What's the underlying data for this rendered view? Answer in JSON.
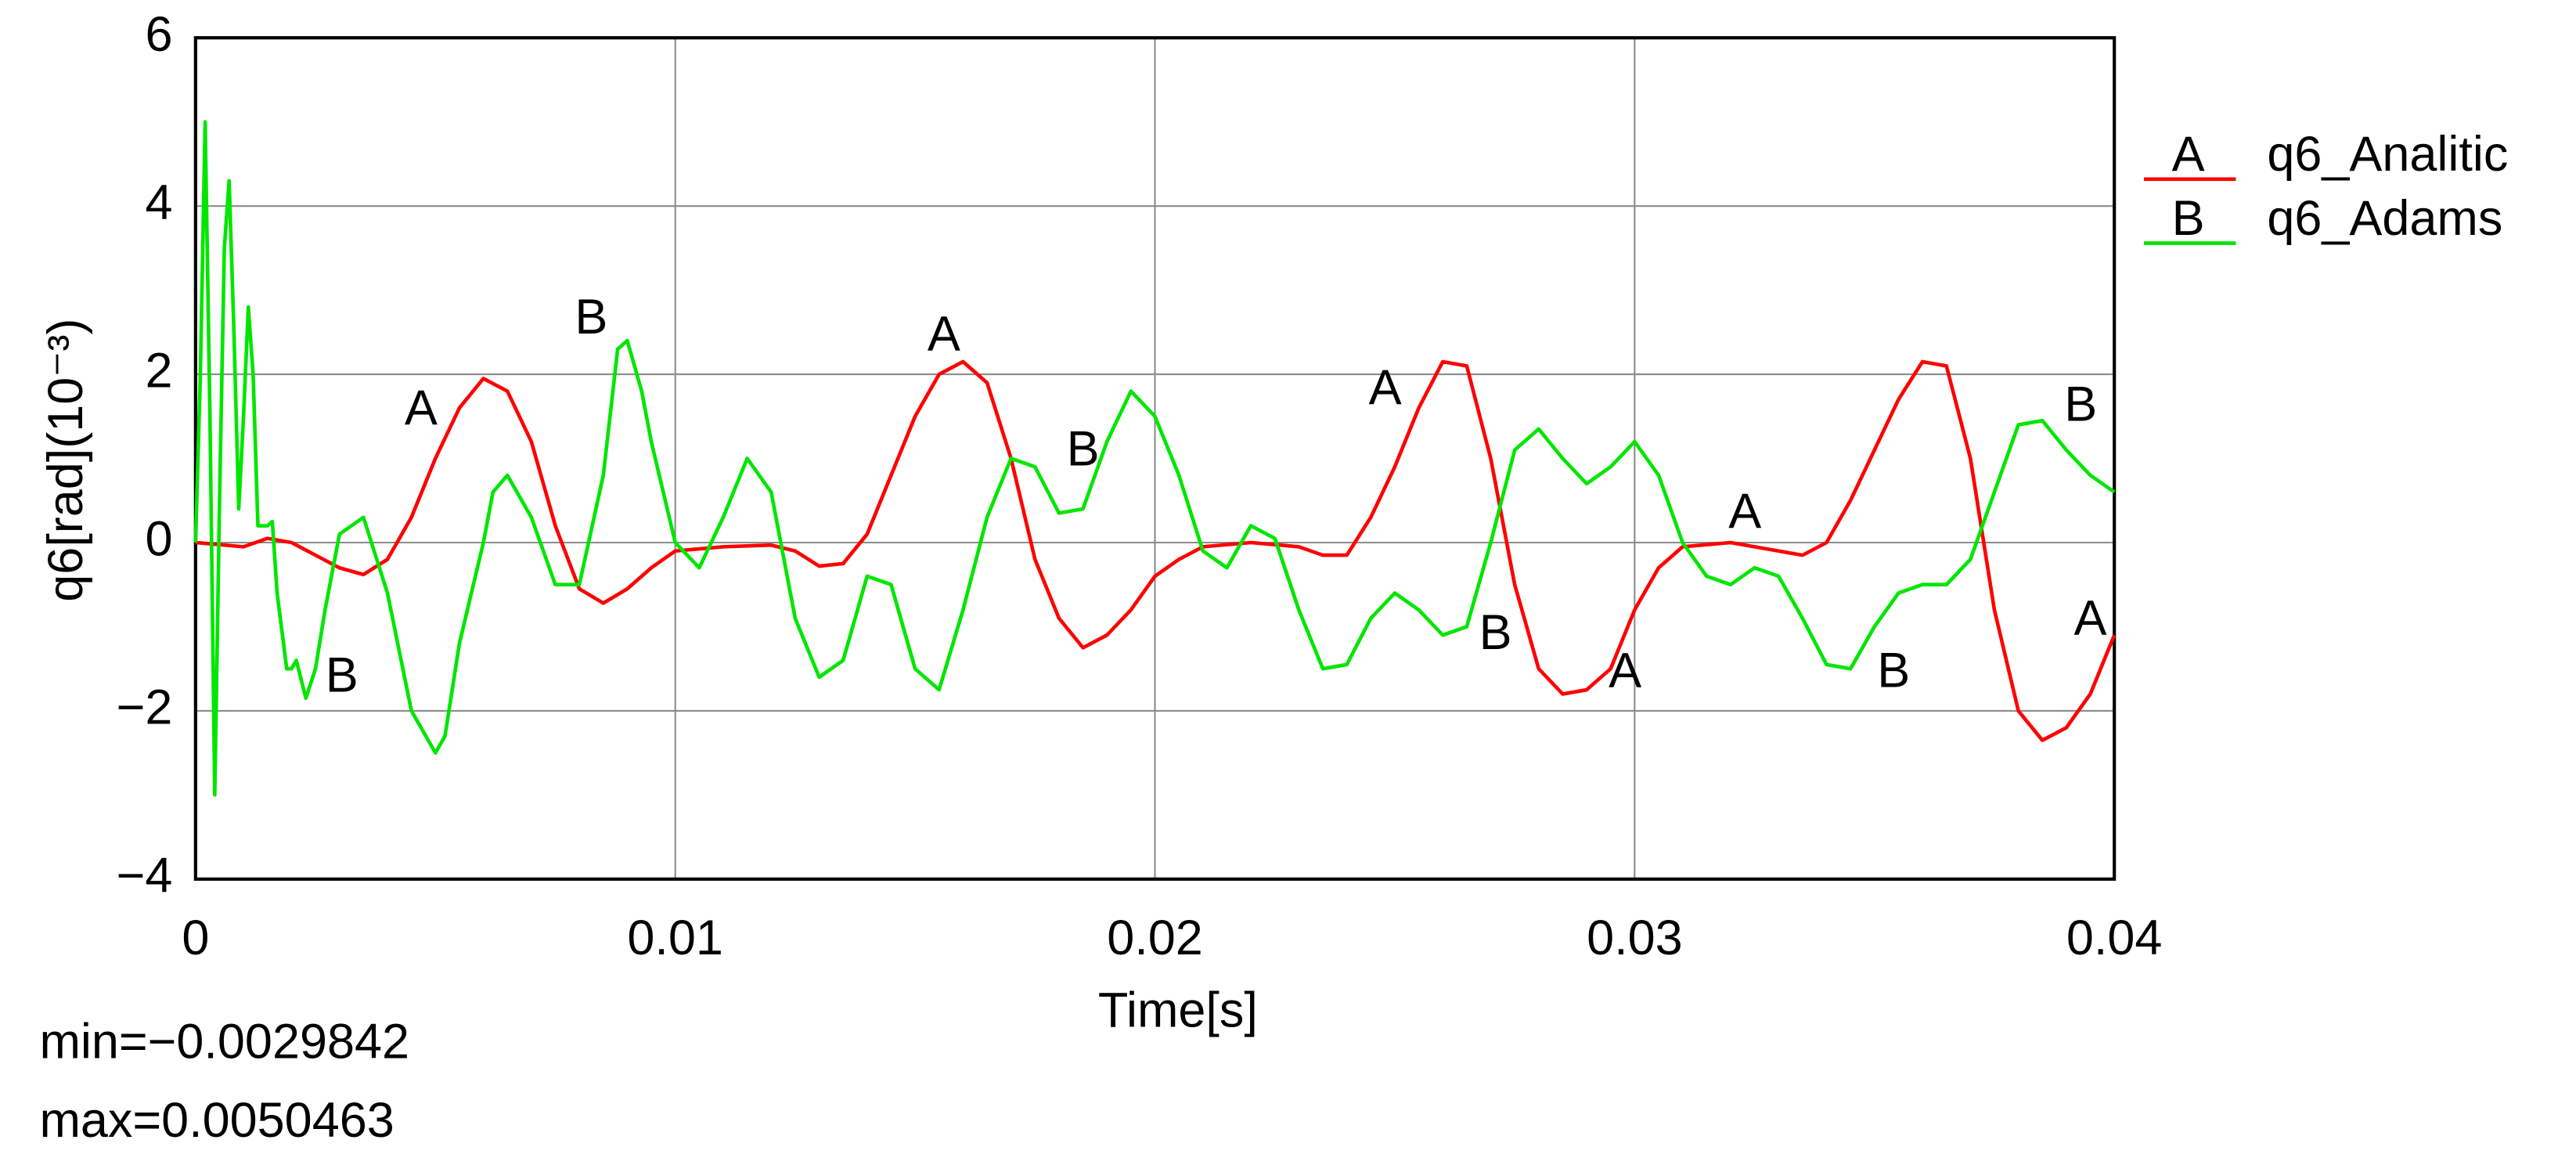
{
  "chart_data": {
    "type": "line",
    "xlabel": "Time[s]",
    "ylabel": "q6[rad](10⁻³)",
    "xlim": [
      0,
      0.04
    ],
    "ylim": [
      -4,
      6
    ],
    "xticks": [
      0,
      0.01,
      0.02,
      0.03,
      0.04
    ],
    "yticks": [
      {
        "value": -4,
        "label": "−4"
      },
      {
        "value": -2,
        "label": "−2"
      },
      0,
      2,
      4,
      6
    ],
    "grid": true,
    "legend": "right",
    "series": [
      {
        "name": "q6_Analitic",
        "label": "A",
        "color": "#ff0000",
        "x": [
          0,
          0.001,
          0.0015,
          0.002,
          0.0025,
          0.003,
          0.0035,
          0.004,
          0.0045,
          0.005,
          0.0055,
          0.006,
          0.0065,
          0.007,
          0.0075,
          0.008,
          0.0085,
          0.009,
          0.0095,
          0.01,
          0.011,
          0.012,
          0.0125,
          0.013,
          0.0135,
          0.014,
          0.0145,
          0.015,
          0.0155,
          0.016,
          0.0165,
          0.017,
          0.0175,
          0.018,
          0.0185,
          0.019,
          0.0195,
          0.02,
          0.0205,
          0.021,
          0.022,
          0.023,
          0.0235,
          0.024,
          0.0245,
          0.025,
          0.0255,
          0.026,
          0.0265,
          0.027,
          0.0275,
          0.028,
          0.0285,
          0.029,
          0.0295,
          0.03,
          0.0305,
          0.031,
          0.032,
          0.033,
          0.0335,
          0.034,
          0.0345,
          0.035,
          0.0355,
          0.036,
          0.0365,
          0.037,
          0.0375,
          0.038,
          0.0385,
          0.039,
          0.0395,
          0.04
        ],
        "values": [
          0,
          -0.05,
          0.05,
          0,
          -0.15,
          -0.3,
          -0.38,
          -0.2,
          0.3,
          1.0,
          1.6,
          1.95,
          1.8,
          1.2,
          0.2,
          -0.55,
          -0.72,
          -0.55,
          -0.3,
          -0.1,
          -0.05,
          -0.03,
          -0.1,
          -0.28,
          -0.25,
          0.1,
          0.8,
          1.5,
          2.0,
          2.15,
          1.9,
          1.0,
          -0.2,
          -0.9,
          -1.25,
          -1.1,
          -0.8,
          -0.4,
          -0.2,
          -0.05,
          0,
          -0.05,
          -0.15,
          -0.15,
          0.3,
          0.9,
          1.6,
          2.15,
          2.1,
          1.0,
          -0.5,
          -1.5,
          -1.8,
          -1.75,
          -1.5,
          -0.8,
          -0.3,
          -0.05,
          0,
          -0.1,
          -0.15,
          0,
          0.5,
          1.1,
          1.7,
          2.15,
          2.1,
          1.0,
          -0.8,
          -2.0,
          -2.35,
          -2.2,
          -1.8,
          -1.1
        ]
      },
      {
        "name": "q6_Adams",
        "label": "B",
        "color": "#00e600",
        "x": [
          0,
          0.0001,
          0.0002,
          0.0003,
          0.0004,
          0.0005,
          0.0006,
          0.0007,
          0.0008,
          0.0009,
          0.001,
          0.0011,
          0.0012,
          0.0013,
          0.0015,
          0.0016,
          0.0017,
          0.0019,
          0.002,
          0.0021,
          0.0023,
          0.0025,
          0.0027,
          0.003,
          0.0035,
          0.004,
          0.0045,
          0.005,
          0.0052,
          0.0055,
          0.006,
          0.0062,
          0.0065,
          0.007,
          0.0075,
          0.008,
          0.0085,
          0.0088,
          0.009,
          0.0093,
          0.0095,
          0.01,
          0.0105,
          0.011,
          0.0115,
          0.012,
          0.0125,
          0.013,
          0.0135,
          0.014,
          0.0145,
          0.015,
          0.0155,
          0.016,
          0.0165,
          0.017,
          0.0175,
          0.018,
          0.0185,
          0.019,
          0.0195,
          0.02,
          0.0205,
          0.021,
          0.0215,
          0.022,
          0.0225,
          0.023,
          0.0235,
          0.024,
          0.0245,
          0.025,
          0.0255,
          0.026,
          0.0265,
          0.027,
          0.0275,
          0.028,
          0.0285,
          0.029,
          0.0295,
          0.03,
          0.0305,
          0.031,
          0.0315,
          0.032,
          0.0325,
          0.033,
          0.0335,
          0.034,
          0.0345,
          0.035,
          0.0355,
          0.036,
          0.0365,
          0.037,
          0.0375,
          0.038,
          0.0385,
          0.039,
          0.0395,
          0.04
        ],
        "values": [
          0,
          2,
          5.0,
          1.5,
          -3.0,
          0.5,
          3.5,
          4.3,
          2.5,
          0.4,
          1.5,
          2.8,
          2.0,
          0.2,
          0.2,
          0.25,
          -0.6,
          -1.5,
          -1.5,
          -1.4,
          -1.85,
          -1.5,
          -0.8,
          0.1,
          0.3,
          -0.6,
          -2.0,
          -2.5,
          -2.3,
          -1.2,
          0,
          0.6,
          0.8,
          0.3,
          -0.5,
          -0.5,
          0.8,
          2.3,
          2.4,
          1.8,
          1.2,
          0,
          -0.3,
          0.3,
          1.0,
          0.6,
          -0.9,
          -1.6,
          -1.4,
          -0.4,
          -0.5,
          -1.5,
          -1.75,
          -0.8,
          0.3,
          1.0,
          0.9,
          0.35,
          0.4,
          1.2,
          1.8,
          1.5,
          0.8,
          -0.1,
          -0.3,
          0.2,
          0.05,
          -0.8,
          -1.5,
          -1.45,
          -0.9,
          -0.6,
          -0.8,
          -1.1,
          -1.0,
          0,
          1.1,
          1.35,
          1.0,
          0.7,
          0.9,
          1.2,
          0.8,
          0,
          -0.4,
          -0.5,
          -0.3,
          -0.4,
          -0.9,
          -1.45,
          -1.5,
          -1.0,
          -0.6,
          -0.5,
          -0.5,
          -0.2,
          0.6,
          1.4,
          1.45,
          1.1,
          0.8,
          0.6
        ]
      }
    ],
    "annotations": [
      {
        "text": "A",
        "x": 0.0047,
        "y": 1.56
      },
      {
        "text": "B",
        "x": 0.00825,
        "y": 2.64
      },
      {
        "text": "A",
        "x": 0.0156,
        "y": 2.44
      },
      {
        "text": "B",
        "x": 0.0185,
        "y": 1.07
      },
      {
        "text": "A",
        "x": 0.0248,
        "y": 1.8
      },
      {
        "text": "B",
        "x": 0.0271,
        "y": -1.11
      },
      {
        "text": "A",
        "x": 0.0298,
        "y": -1.56
      },
      {
        "text": "A",
        "x": 0.0323,
        "y": 0.33
      },
      {
        "text": "B",
        "x": 0.0354,
        "y": -1.56
      },
      {
        "text": "B",
        "x": 0.0393,
        "y": 1.6
      },
      {
        "text": "A",
        "x": 0.0395,
        "y": -0.94
      },
      {
        "text": "B",
        "x": 0.00305,
        "y": -1.62
      }
    ],
    "stats": [
      "min=−0.0029842",
      "max=0.0050463"
    ]
  }
}
